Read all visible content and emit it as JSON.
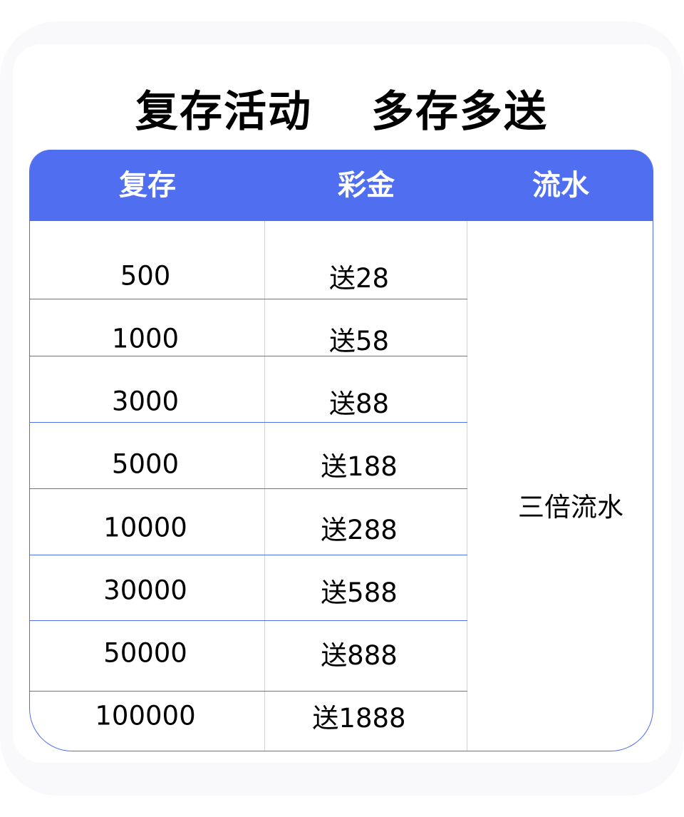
{
  "title": {
    "left": "复存活动",
    "right": "多存多送"
  },
  "headers": [
    "复存",
    "彩金",
    "流水"
  ],
  "rows": [
    {
      "deposit": "500",
      "bonus": "送28"
    },
    {
      "deposit": "1000",
      "bonus": "送58"
    },
    {
      "deposit": "3000",
      "bonus": "送88"
    },
    {
      "deposit": "5000",
      "bonus": "送188"
    },
    {
      "deposit": "10000",
      "bonus": "送288"
    },
    {
      "deposit": "30000",
      "bonus": "送588"
    },
    {
      "deposit": "50000",
      "bonus": "送888"
    },
    {
      "deposit": "100000",
      "bonus": "送1888"
    }
  ],
  "turnover": "三倍流水",
  "colors": {
    "accent": "#4f6ef0",
    "divider": "#c8d0fa"
  }
}
